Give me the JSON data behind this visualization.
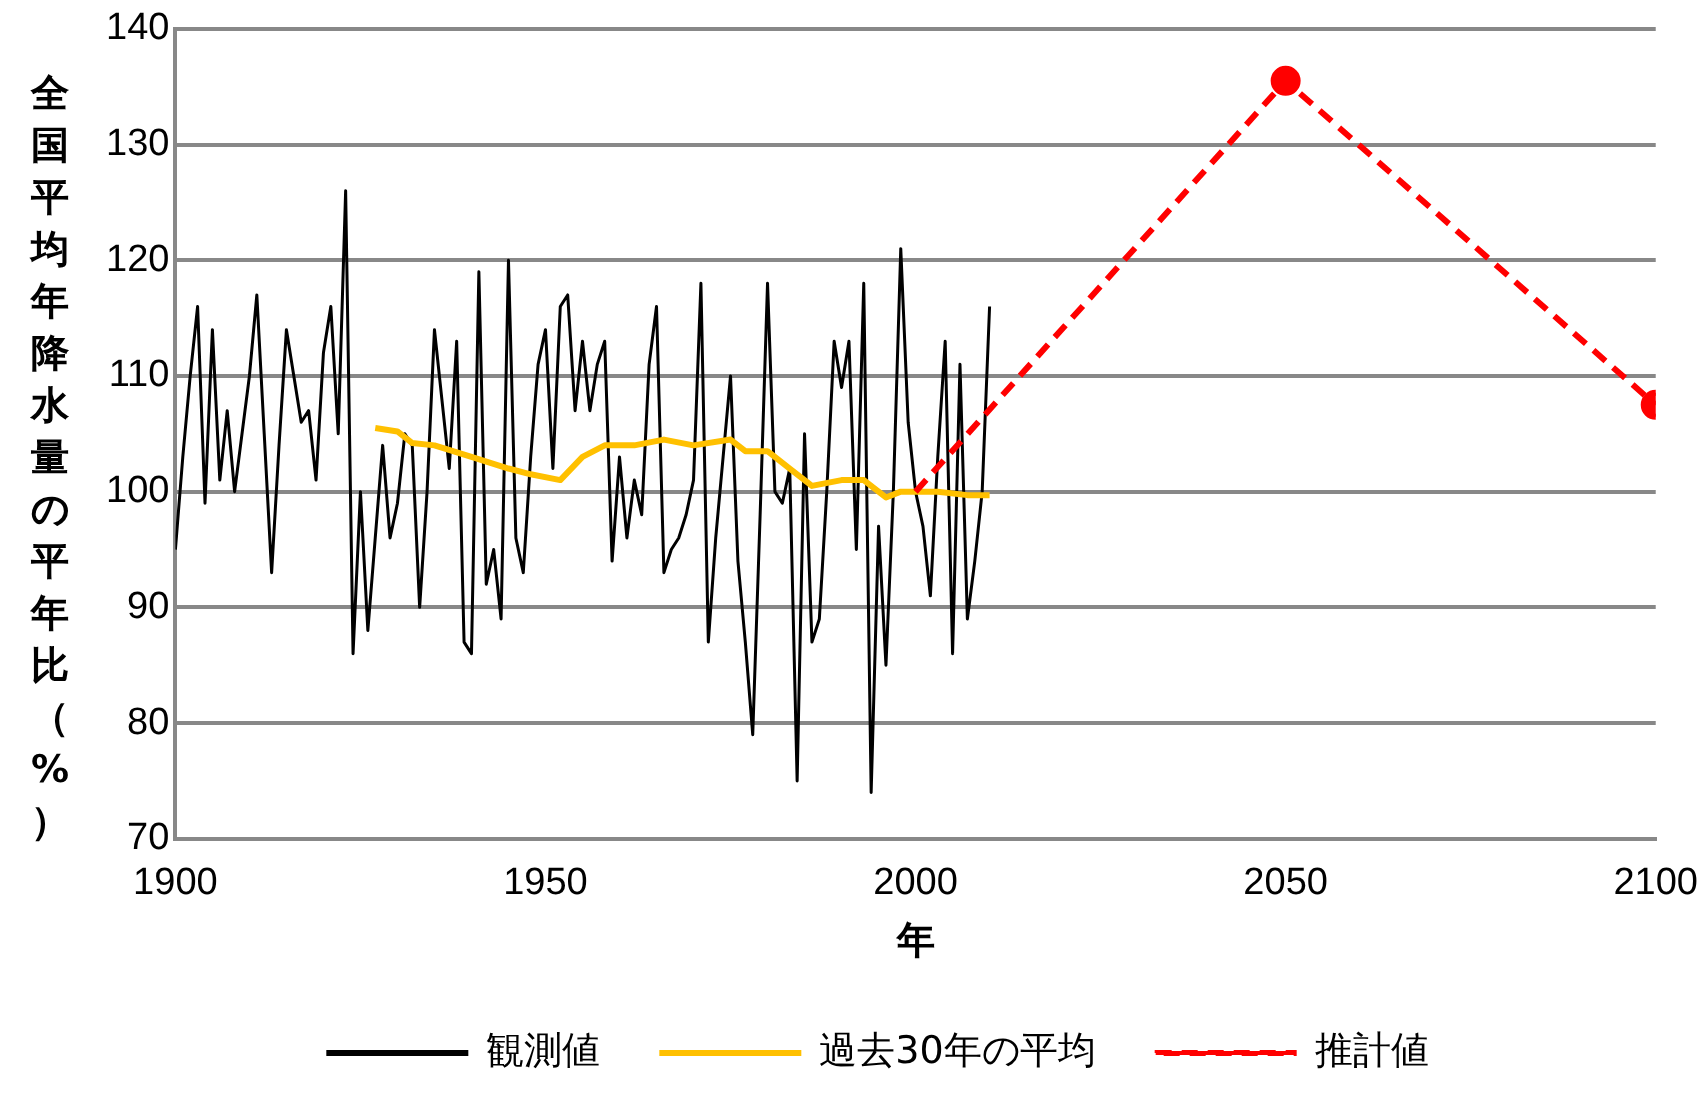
{
  "chart_data": {
    "type": "line",
    "xlabel": "年",
    "ylabel": "全国平均年降水量の平年比（%）",
    "xlim": [
      1900,
      2100
    ],
    "xticks": [
      1900,
      1950,
      2000,
      2050,
      2100
    ],
    "ylim": [
      70,
      140
    ],
    "yticks": [
      70,
      80,
      90,
      100,
      110,
      120,
      130,
      140
    ],
    "grid": "y",
    "legend": "bottom",
    "series": [
      {
        "name": "観測値",
        "color": "#000000",
        "marker": "none",
        "line_style": "solid",
        "x": [
          1900,
          1901,
          1902,
          1903,
          1904,
          1905,
          1906,
          1907,
          1908,
          1909,
          1910,
          1911,
          1912,
          1913,
          1914,
          1915,
          1916,
          1917,
          1918,
          1919,
          1920,
          1921,
          1922,
          1923,
          1924,
          1925,
          1926,
          1927,
          1928,
          1929,
          1930,
          1931,
          1932,
          1933,
          1934,
          1935,
          1936,
          1937,
          1938,
          1939,
          1940,
          1941,
          1942,
          1943,
          1944,
          1945,
          1946,
          1947,
          1948,
          1949,
          1950,
          1951,
          1952,
          1953,
          1954,
          1955,
          1956,
          1957,
          1958,
          1959,
          1960,
          1961,
          1962,
          1963,
          1964,
          1965,
          1966,
          1967,
          1968,
          1969,
          1970,
          1971,
          1972,
          1973,
          1974,
          1975,
          1976,
          1977,
          1978,
          1979,
          1980,
          1981,
          1982,
          1983,
          1984,
          1985,
          1986,
          1987,
          1988,
          1989,
          1990,
          1991,
          1992,
          1993,
          1994,
          1995,
          1996,
          1997,
          1998,
          1999,
          2000,
          2001,
          2002,
          2003,
          2004,
          2005,
          2006,
          2007,
          2008,
          2009,
          2010
        ],
        "values": [
          95,
          103,
          110,
          116,
          99,
          114,
          101,
          107,
          100,
          105,
          110,
          117,
          105,
          93,
          104,
          114,
          110,
          106,
          107,
          101,
          112,
          116,
          105,
          126,
          86,
          100,
          88,
          96,
          104,
          96,
          99,
          105,
          104,
          90,
          100,
          114,
          108,
          102,
          113,
          87,
          86,
          119,
          92,
          95,
          89,
          120,
          96,
          93,
          103,
          111,
          114,
          102,
          116,
          117,
          107,
          113,
          107,
          111,
          113,
          94,
          103,
          96,
          101,
          98,
          111,
          116,
          93,
          95,
          96,
          98,
          101,
          118,
          87,
          96,
          103,
          110,
          94,
          87,
          79,
          98,
          118,
          100,
          99,
          102,
          75,
          105,
          87,
          89,
          100,
          113,
          109,
          113,
          95,
          118,
          74,
          97,
          85,
          100,
          121,
          106,
          100,
          97,
          91,
          103,
          113,
          86,
          111,
          89,
          94,
          100,
          116
        ]
      },
      {
        "name": "過去30年の平均",
        "color": "#ffc000",
        "marker": "none",
        "line_style": "solid",
        "x": [
          1927,
          1930,
          1932,
          1935,
          1940,
          1945,
          1948,
          1952,
          1955,
          1958,
          1962,
          1966,
          1970,
          1975,
          1977,
          1980,
          1983,
          1986,
          1990,
          1993,
          1996,
          1998,
          2000,
          2003,
          2007,
          2010
        ],
        "values": [
          105.5,
          105.2,
          104.2,
          104,
          103,
          102,
          101.5,
          101,
          103,
          104,
          104,
          104.5,
          104,
          104.5,
          103.5,
          103.5,
          102,
          100.5,
          101,
          101,
          99.5,
          100,
          100,
          100,
          99.7,
          99.7
        ]
      },
      {
        "name": "推計値",
        "color": "#ff0000",
        "marker": "circle",
        "line_style": "dashed",
        "x": [
          2000,
          2050,
          2100
        ],
        "values": [
          100,
          135.5,
          107.5
        ]
      }
    ]
  }
}
